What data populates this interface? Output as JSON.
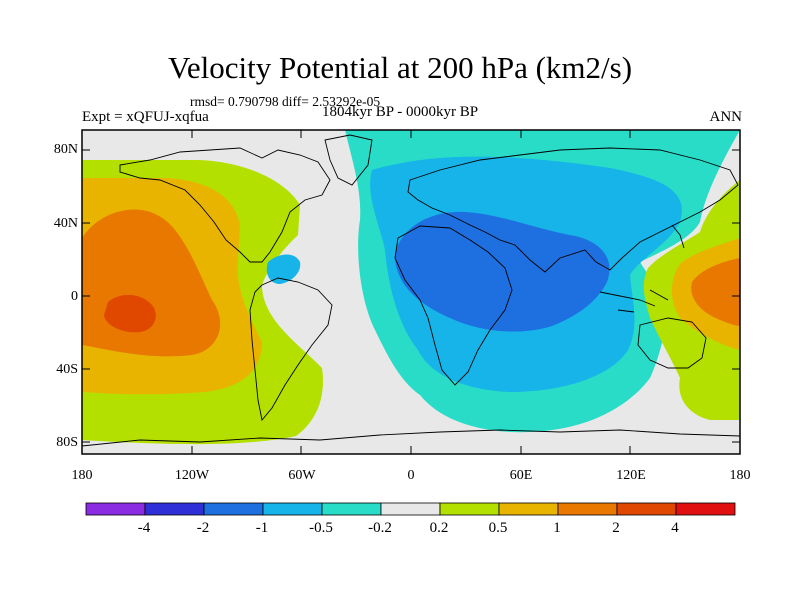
{
  "map": {
    "title": "Velocity Potential at 200 hPa (km2/s)",
    "stats": "rmsd= 0.790798 diff= 2.53292e-05",
    "experiment": "Expt = xQFUJ-xqfua",
    "period": "1804kyr BP - 0000kyr BP",
    "season": "ANN",
    "lat_ticks": [
      "80N",
      "40N",
      "0",
      "40S",
      "80S"
    ],
    "lon_ticks": [
      "180",
      "120W",
      "60W",
      "0",
      "60E",
      "120E",
      "180"
    ]
  },
  "colorbar": {
    "labels": [
      "-4",
      "-2",
      "-1",
      "-0.5",
      "-0.2",
      "0.2",
      "0.5",
      "1",
      "2",
      "4"
    ],
    "colors": [
      "#8b2be2",
      "#2f2fd8",
      "#1e6fe0",
      "#16b4e8",
      "#28dcc8",
      "#e8e8e8",
      "#b4e000",
      "#e8b400",
      "#e87800",
      "#e04800",
      "#e01010"
    ]
  },
  "palette": {
    "neutral": "#e8e8e8",
    "blue": "#1e6fe0",
    "lightblue": "#16b4e8",
    "teal": "#28dcc8",
    "yellowgreen": "#b4e000",
    "gold": "#e8b400",
    "orange": "#e87800",
    "redorange": "#e04800",
    "coast": "#000000"
  }
}
